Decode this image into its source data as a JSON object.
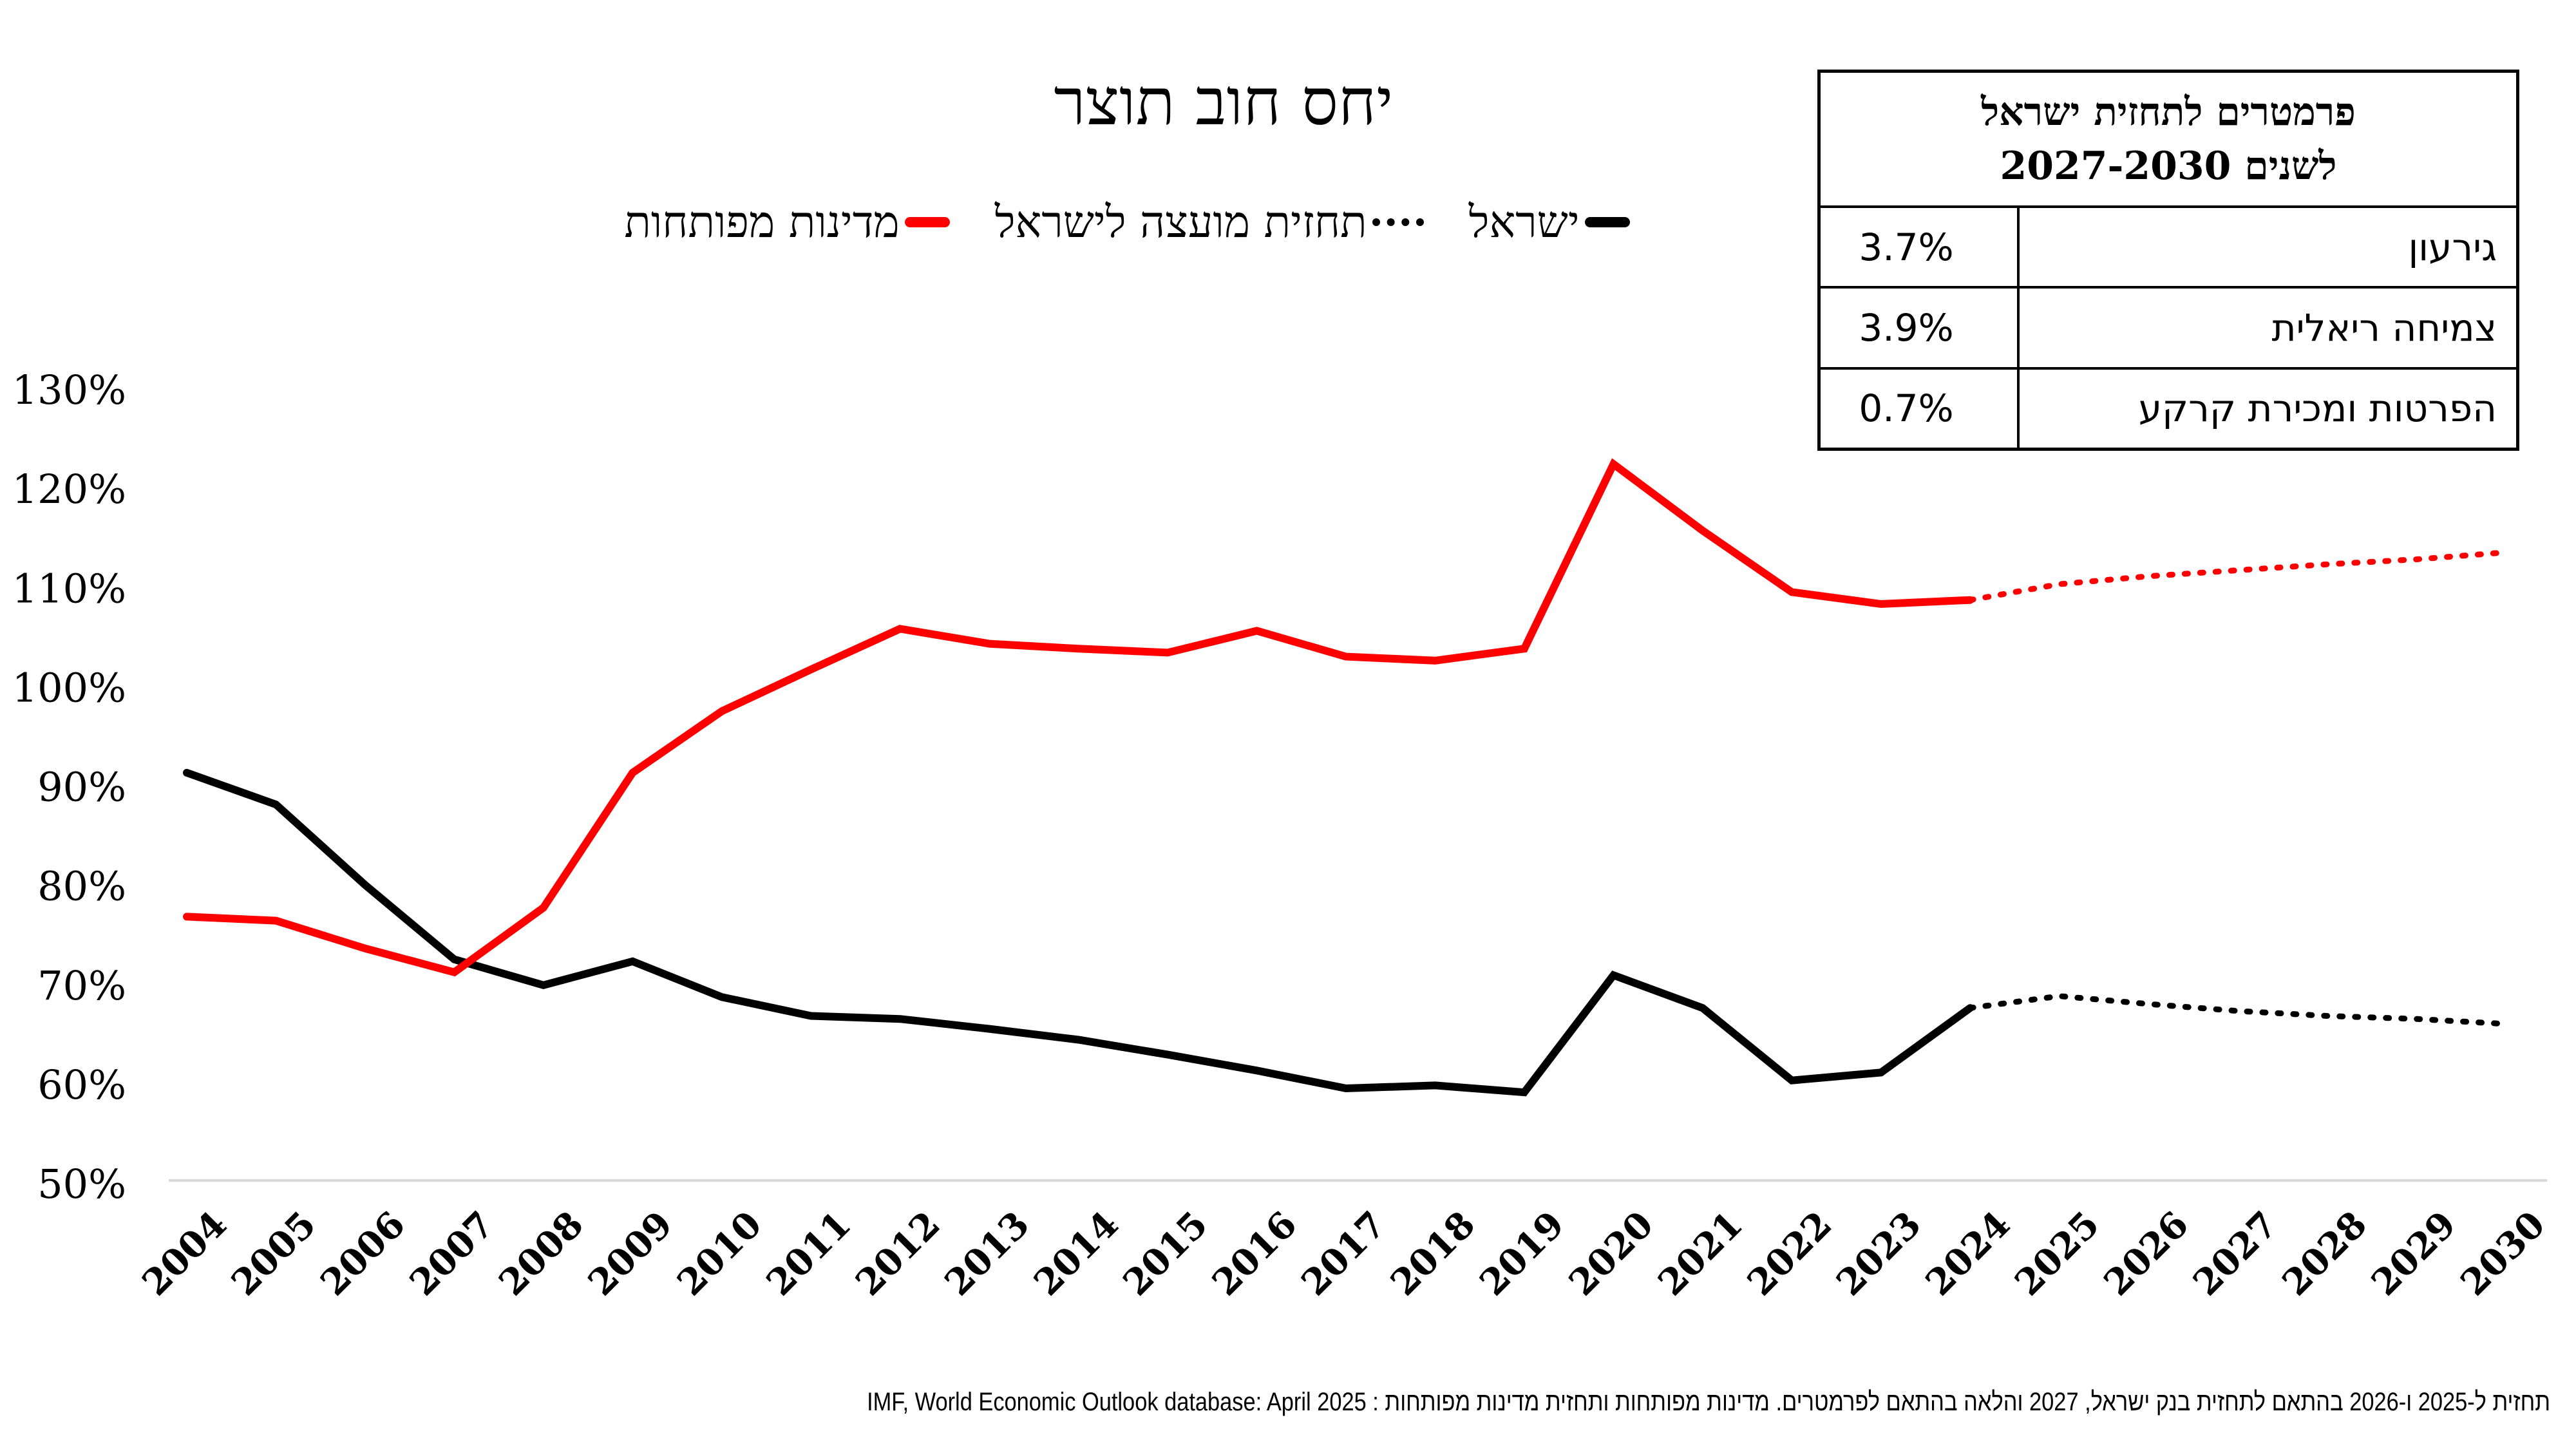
{
  "chart_data": {
    "type": "line",
    "title": "יחס חוב תוצר",
    "xlabel": "",
    "ylabel": "",
    "ylim": [
      50,
      130
    ],
    "yticks": [
      "50%",
      "60%",
      "70%",
      "80%",
      "90%",
      "100%",
      "110%",
      "120%",
      "130%"
    ],
    "ytick_values": [
      50,
      60,
      70,
      80,
      90,
      100,
      110,
      120,
      130
    ],
    "categories": [
      "2004",
      "2005",
      "2006",
      "2007",
      "2008",
      "2009",
      "2010",
      "2011",
      "2012",
      "2013",
      "2014",
      "2015",
      "2016",
      "2017",
      "2018",
      "2019",
      "2020",
      "2021",
      "2022",
      "2023",
      "2024",
      "2025",
      "2026",
      "2027",
      "2028",
      "2029",
      "2030"
    ],
    "grid": false,
    "legend_position": "top",
    "legend": [
      "מדינות מפותחות",
      "תחזית מועצה לישראל",
      "ישראל"
    ],
    "series": [
      {
        "name": "ישראל",
        "color": "#000000",
        "style": "solid",
        "values": [
          91.4,
          88.2,
          80.1,
          72.6,
          70.0,
          72.4,
          68.8,
          66.9,
          66.6,
          65.6,
          64.5,
          63.0,
          61.4,
          59.6,
          59.9,
          59.2,
          71.0,
          67.7,
          60.4,
          61.2,
          67.7,
          null,
          null,
          null,
          null,
          null,
          null
        ]
      },
      {
        "name": "תחזית מועצה לישראל",
        "color": "#000000",
        "style": "dotted",
        "values": [
          null,
          null,
          null,
          null,
          null,
          null,
          null,
          null,
          null,
          null,
          null,
          null,
          null,
          null,
          null,
          null,
          null,
          null,
          null,
          null,
          67.7,
          68.9,
          68.1,
          67.4,
          66.9,
          66.6,
          66.1
        ]
      },
      {
        "name": "מדינות מפותחות",
        "color": "#ff0000",
        "style": "solid",
        "values": [
          76.9,
          76.5,
          73.7,
          71.3,
          77.8,
          91.4,
          97.6,
          101.8,
          105.9,
          104.4,
          103.9,
          103.5,
          105.7,
          103.1,
          102.7,
          103.9,
          122.5,
          115.8,
          109.6,
          108.4,
          108.8,
          null,
          null,
          null,
          null,
          null,
          null
        ]
      },
      {
        "name": "מדינות מפותחות - תחזית",
        "color": "#ff0000",
        "style": "dotted",
        "values": [
          null,
          null,
          null,
          null,
          null,
          null,
          null,
          null,
          null,
          null,
          null,
          null,
          null,
          null,
          null,
          null,
          null,
          null,
          null,
          null,
          108.8,
          110.4,
          111.2,
          111.8,
          112.4,
          112.9,
          113.6
        ]
      }
    ]
  },
  "legend_items": [
    {
      "label": "מדינות מפותחות",
      "style": "solid-red"
    },
    {
      "label": "תחזית מועצה לישראל",
      "style": "dotted-black"
    },
    {
      "label": "ישראל",
      "style": "solid-black"
    }
  ],
  "param_table": {
    "header_line1": "פרמטרים לתחזית ישראל",
    "header_line2": "לשנים 2027-2030",
    "rows": [
      {
        "label": "גירעון",
        "value": "3.7%"
      },
      {
        "label": "צמיחה ריאלית",
        "value": "3.9%"
      },
      {
        "label": "הפרטות ומכירת קרקע",
        "value": "0.7%"
      }
    ]
  },
  "source_note": "תחזית ל-2025 ו-2026 בהתאם לתחזית בנק ישראל, 2027 והלאה בהתאם לפרמטרים. מדינות מפותחות ותחזית מדינות מפותחות : IMF, World Economic Outlook database: April 2025",
  "colors": {
    "israel": "#000000",
    "advanced": "#ff0000",
    "axis": "#d9d9d9"
  }
}
